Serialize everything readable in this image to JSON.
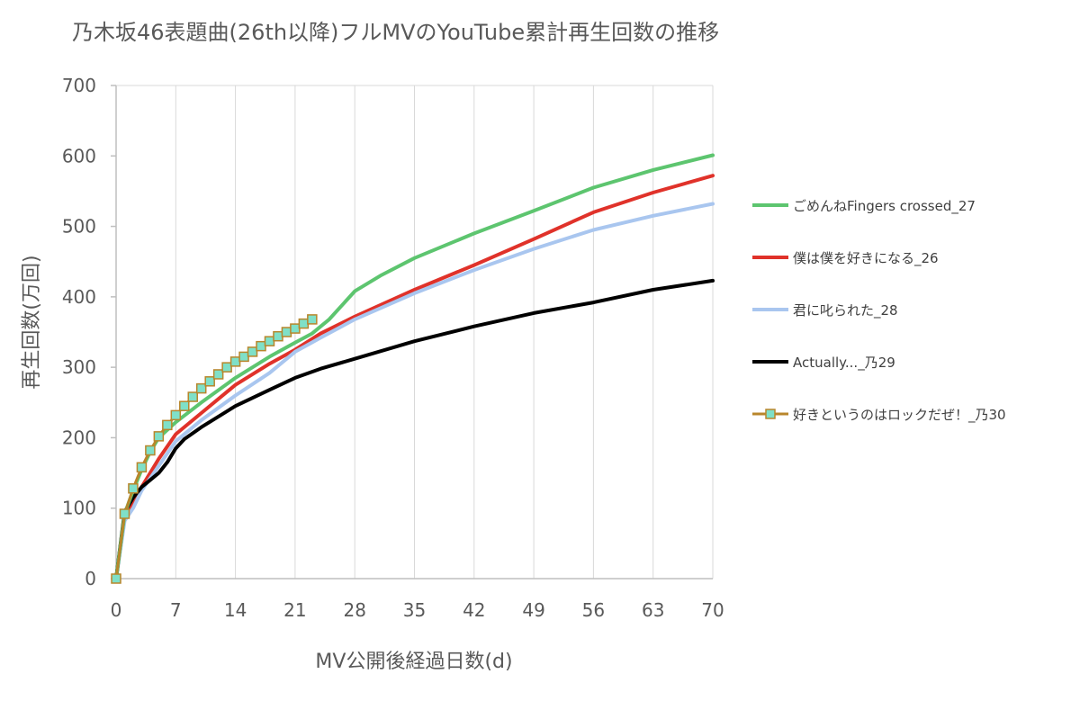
{
  "chart_data": {
    "type": "line",
    "title": "乃木坂46表題曲(26th以降)フルMVのYouTube累計再生回数の推移",
    "xlabel": "MV公開後経過日数(d)",
    "ylabel": "再生回数(万回)",
    "xlim": [
      0,
      70
    ],
    "ylim": [
      0,
      700
    ],
    "x_ticks": [
      "0",
      "7",
      "14",
      "21",
      "28",
      "35",
      "42",
      "49",
      "56",
      "63",
      "70"
    ],
    "y_ticks": [
      "0",
      "100",
      "200",
      "300",
      "400",
      "500",
      "600",
      "700"
    ],
    "grid": "vertical",
    "legend_position": "right",
    "series": [
      {
        "name": "ごめんねFingers crossed_27",
        "color": "#5DC56F",
        "marker": "none",
        "points": [
          [
            0,
            0
          ],
          [
            1,
            92
          ],
          [
            2,
            125
          ],
          [
            3,
            155
          ],
          [
            4,
            180
          ],
          [
            5,
            200
          ],
          [
            7,
            222
          ],
          [
            10,
            250
          ],
          [
            14,
            285
          ],
          [
            18,
            315
          ],
          [
            21,
            335
          ],
          [
            23,
            348
          ],
          [
            25,
            368
          ],
          [
            28,
            408
          ],
          [
            31,
            430
          ],
          [
            35,
            455
          ],
          [
            42,
            490
          ],
          [
            49,
            522
          ],
          [
            56,
            555
          ],
          [
            63,
            580
          ],
          [
            70,
            601
          ]
        ]
      },
      {
        "name": "僕は僕を好きになる_26",
        "color": "#E0322A",
        "marker": "none",
        "points": [
          [
            0,
            0
          ],
          [
            1,
            88
          ],
          [
            2,
            110
          ],
          [
            3,
            130
          ],
          [
            4,
            150
          ],
          [
            5,
            170
          ],
          [
            7,
            205
          ],
          [
            10,
            235
          ],
          [
            14,
            275
          ],
          [
            18,
            305
          ],
          [
            21,
            325
          ],
          [
            24,
            348
          ],
          [
            28,
            372
          ],
          [
            35,
            410
          ],
          [
            42,
            445
          ],
          [
            49,
            482
          ],
          [
            56,
            520
          ],
          [
            63,
            548
          ],
          [
            70,
            572
          ]
        ]
      },
      {
        "name": "君に叱られた_28",
        "color": "#A9C6EF",
        "marker": "none",
        "points": [
          [
            0,
            0
          ],
          [
            1,
            82
          ],
          [
            2,
            100
          ],
          [
            3,
            125
          ],
          [
            5,
            160
          ],
          [
            7,
            195
          ],
          [
            10,
            225
          ],
          [
            14,
            260
          ],
          [
            18,
            292
          ],
          [
            21,
            322
          ],
          [
            24,
            342
          ],
          [
            28,
            368
          ],
          [
            35,
            405
          ],
          [
            42,
            438
          ],
          [
            49,
            468
          ],
          [
            56,
            495
          ],
          [
            63,
            515
          ],
          [
            70,
            532
          ]
        ]
      },
      {
        "name": "Actually..._乃29",
        "color": "#000000",
        "marker": "none",
        "points": [
          [
            0,
            0
          ],
          [
            1,
            95
          ],
          [
            2,
            115
          ],
          [
            3,
            130
          ],
          [
            4,
            140
          ],
          [
            5,
            150
          ],
          [
            6,
            165
          ],
          [
            7,
            185
          ],
          [
            8,
            198
          ],
          [
            10,
            215
          ],
          [
            14,
            245
          ],
          [
            18,
            268
          ],
          [
            21,
            285
          ],
          [
            24,
            298
          ],
          [
            28,
            312
          ],
          [
            35,
            337
          ],
          [
            42,
            358
          ],
          [
            49,
            377
          ],
          [
            56,
            392
          ],
          [
            63,
            410
          ],
          [
            70,
            423
          ]
        ]
      },
      {
        "name": "好きというのはロックだぜ！_乃30",
        "color": "#B8862B",
        "marker": "square",
        "marker_fill": "#7FE0C8",
        "points": [
          [
            0,
            0
          ],
          [
            1,
            92
          ],
          [
            2,
            128
          ],
          [
            3,
            158
          ],
          [
            4,
            182
          ],
          [
            5,
            202
          ],
          [
            6,
            218
          ],
          [
            7,
            232
          ],
          [
            8,
            245
          ],
          [
            9,
            258
          ],
          [
            10,
            270
          ],
          [
            11,
            280
          ],
          [
            12,
            290
          ],
          [
            13,
            300
          ],
          [
            14,
            308
          ],
          [
            15,
            315
          ],
          [
            16,
            322
          ],
          [
            17,
            330
          ],
          [
            18,
            337
          ],
          [
            19,
            344
          ],
          [
            20,
            350
          ],
          [
            21,
            355
          ],
          [
            22,
            362
          ],
          [
            23,
            368
          ]
        ]
      }
    ]
  }
}
